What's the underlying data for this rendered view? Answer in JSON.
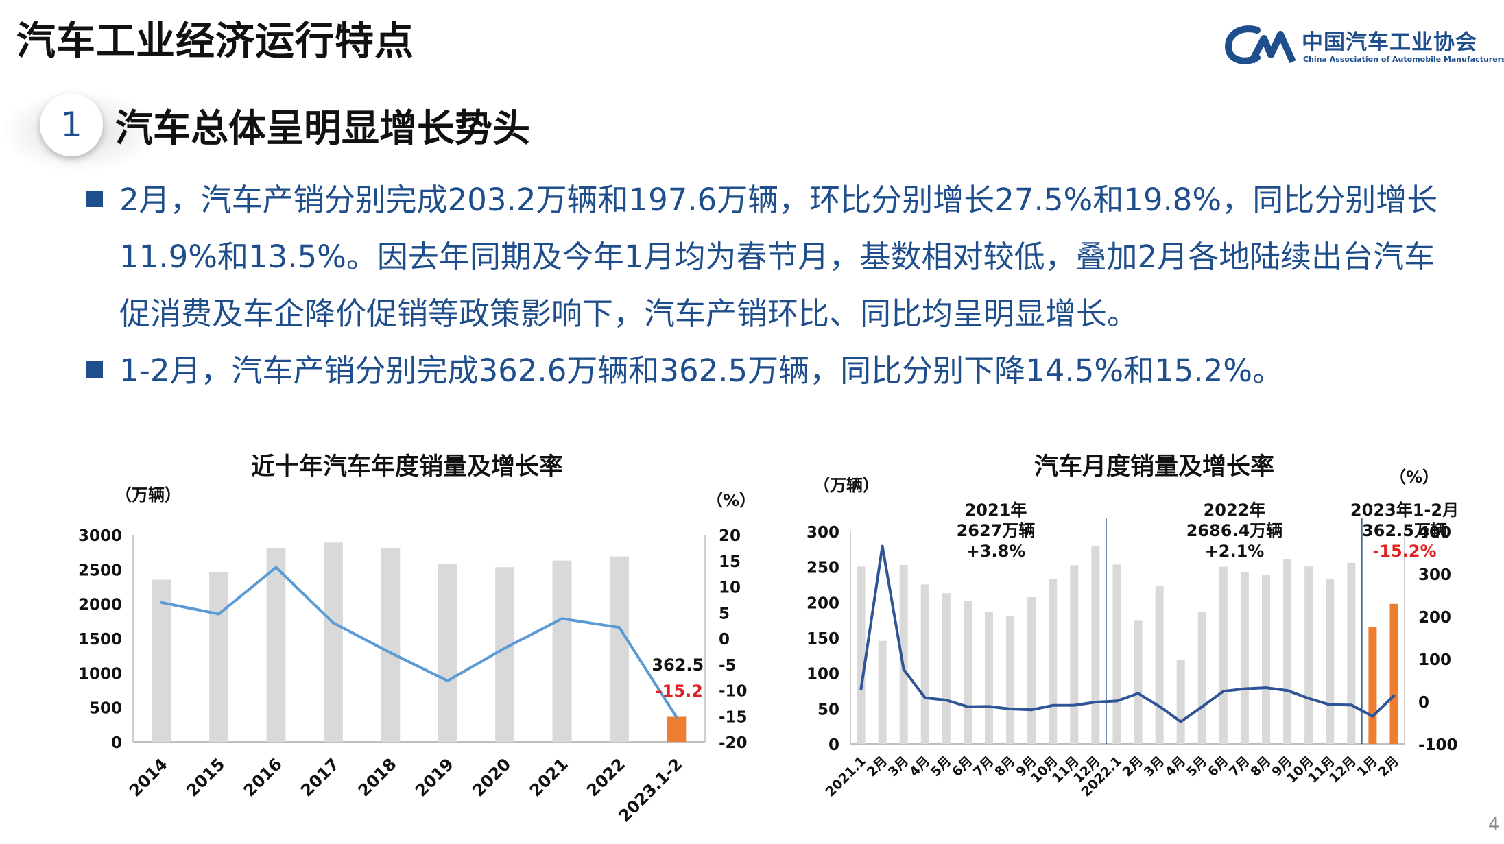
{
  "page": {
    "title": "汽车工业经济运行特点",
    "number": "4"
  },
  "logo": {
    "cn": "中国汽车工业协会",
    "en": "China Association of Automobile Manufacturers"
  },
  "section": {
    "number": "1",
    "title": "汽车总体呈明显增长势头"
  },
  "bullets": [
    {
      "text": "2月，汽车产销分别完成203.2万辆和197.6万辆，环比分别增长27.5%和19.8%，同比分别增长11.9%和13.5%。因去年同期及今年1月均为春节月，基数相对较低，叠加2月各地陆续出台汽车促消费及车企降价促销等政策影响下，汽车产销环比、同比均呈明显增长。"
    },
    {
      "text": "1-2月，汽车产销分别完成362.6万辆和362.5万辆，同比分别下降14.5%和15.2%。"
    }
  ],
  "colors": {
    "brand": "#1f4e8c",
    "bar_gray": "#d9d9d9",
    "bar_orange": "#ed7d31",
    "line_blue_light": "#5b9bd5",
    "line_blue_dark": "#2f5597",
    "highlight_red": "#e02020"
  },
  "chart_data": [
    {
      "type": "bar",
      "title": "近十年汽车年度销量及增长率",
      "y_unit_left": "（万辆）",
      "y_unit_right": "（%）",
      "categories": [
        "2014",
        "2015",
        "2016",
        "2017",
        "2018",
        "2019",
        "2020",
        "2021",
        "2022",
        "2023.1-2"
      ],
      "series": [
        {
          "kind": "bar",
          "values": [
            2349,
            2460,
            2803,
            2888,
            2808,
            2577,
            2531,
            2627,
            2686,
            362.5
          ]
        },
        {
          "kind": "line",
          "axis": "right",
          "values": [
            6.9,
            4.7,
            13.7,
            3.0,
            -2.8,
            -8.2,
            -1.9,
            3.8,
            2.1,
            -15.2
          ]
        }
      ],
      "y_ticks_left": [
        "0",
        "500",
        "1000",
        "1500",
        "2000",
        "2500",
        "3000"
      ],
      "y_ticks_right": [
        "-20",
        "-15",
        "-10",
        "-5",
        "0",
        "5",
        "10",
        "15",
        "20"
      ],
      "ylim_left": [
        0,
        3000
      ],
      "ylim_right": [
        -20,
        20
      ],
      "annotations": [
        {
          "text": "362.5",
          "color": "#111111"
        },
        {
          "text": "-15.2",
          "color": "#e02020"
        }
      ],
      "grid": false
    },
    {
      "type": "bar",
      "title": "汽车月度销量及增长率",
      "y_unit_left": "（万辆）",
      "y_unit_right": "（%）",
      "categories": [
        "2021.1",
        "2月",
        "3月",
        "4月",
        "5月",
        "6月",
        "7月",
        "8月",
        "9月",
        "10月",
        "11月",
        "12月",
        "2022.1",
        "2月",
        "3月",
        "4月",
        "5月",
        "6月",
        "7月",
        "8月",
        "9月",
        "10月",
        "11月",
        "12月",
        "1月",
        "2月"
      ],
      "series": [
        {
          "kind": "bar",
          "values": [
            250.3,
            145.5,
            252.6,
            225.2,
            212.8,
            201.5,
            186.4,
            180.9,
            207.1,
            233.3,
            252.2,
            278.6,
            253.1,
            173.7,
            223.4,
            118.1,
            186.2,
            250.2,
            242.0,
            238.3,
            261.0,
            250.5,
            232.9,
            255.6,
            164.9,
            197.6
          ]
        },
        {
          "kind": "line",
          "axis": "right",
          "values": [
            29.5,
            365.0,
            74.9,
            8.6,
            3.1,
            -12.4,
            -11.9,
            -17.8,
            -19.6,
            -9.3,
            -9.1,
            -1.6,
            0.9,
            18.7,
            -11.7,
            -47.6,
            -12.6,
            23.8,
            29.7,
            32.1,
            25.7,
            7.3,
            -7.9,
            -8.4,
            -35.0,
            13.5
          ]
        }
      ],
      "y_ticks_left": [
        "0",
        "50",
        "100",
        "150",
        "200",
        "250",
        "300"
      ],
      "y_ticks_right": [
        "-100",
        "0",
        "100",
        "200",
        "300",
        "400"
      ],
      "ylim_left": [
        0,
        300
      ],
      "ylim_right": [
        -100,
        400
      ],
      "annotations": [
        {
          "lines": [
            "2021年",
            "2627万辆",
            "+3.8%"
          ],
          "color": "#111111"
        },
        {
          "lines": [
            "2022年",
            "2686.4万辆",
            "+2.1%"
          ],
          "color": "#111111"
        },
        {
          "lines": [
            "2023年1-2月",
            "362.5万辆",
            "-15.2%"
          ],
          "color": "#111111",
          "last_line_color": "#e02020"
        }
      ],
      "grid": false
    }
  ]
}
